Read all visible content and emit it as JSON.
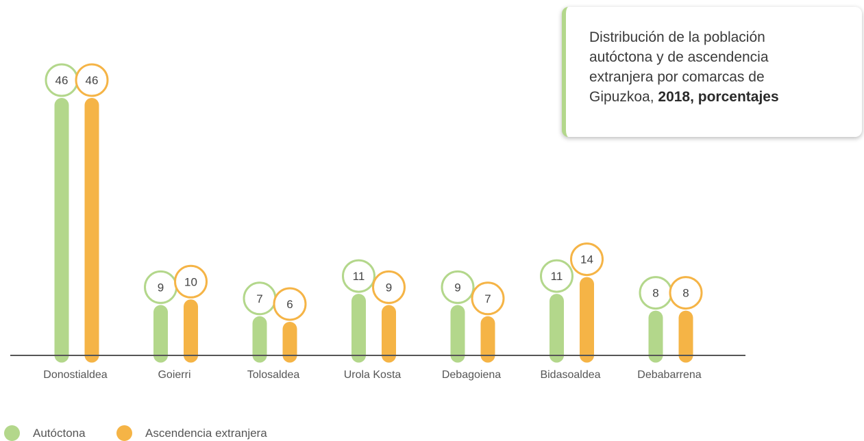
{
  "title": {
    "prefix": "Distribución de la población autóctona y de ascendencia extranjera por comarcas de Gipuzkoa, ",
    "bold": "2018, porcentajes"
  },
  "colors": {
    "autoctona": "#b3d78b",
    "extranjera": "#f5b446",
    "axis": "#555555",
    "label": "#555555"
  },
  "chart_data": {
    "type": "bar",
    "categories": [
      "Donostialdea",
      "Goierri",
      "Tolosaldea",
      "Urola Kosta",
      "Debagoiena",
      "Bidasoaldea",
      "Debabarrena"
    ],
    "series": [
      {
        "name": "Autóctona",
        "values": [
          46,
          9,
          7,
          11,
          9,
          11,
          8
        ]
      },
      {
        "name": "Ascendencia extranjera",
        "values": [
          46,
          10,
          6,
          9,
          7,
          14,
          8
        ]
      }
    ],
    "ylim": [
      0,
      46
    ],
    "grid": false,
    "legend": "bottom-left"
  },
  "legend": {
    "items": [
      {
        "label": "Autóctona",
        "color": "#b3d78b"
      },
      {
        "label": "Ascendencia extranjera",
        "color": "#f5b446"
      }
    ]
  }
}
